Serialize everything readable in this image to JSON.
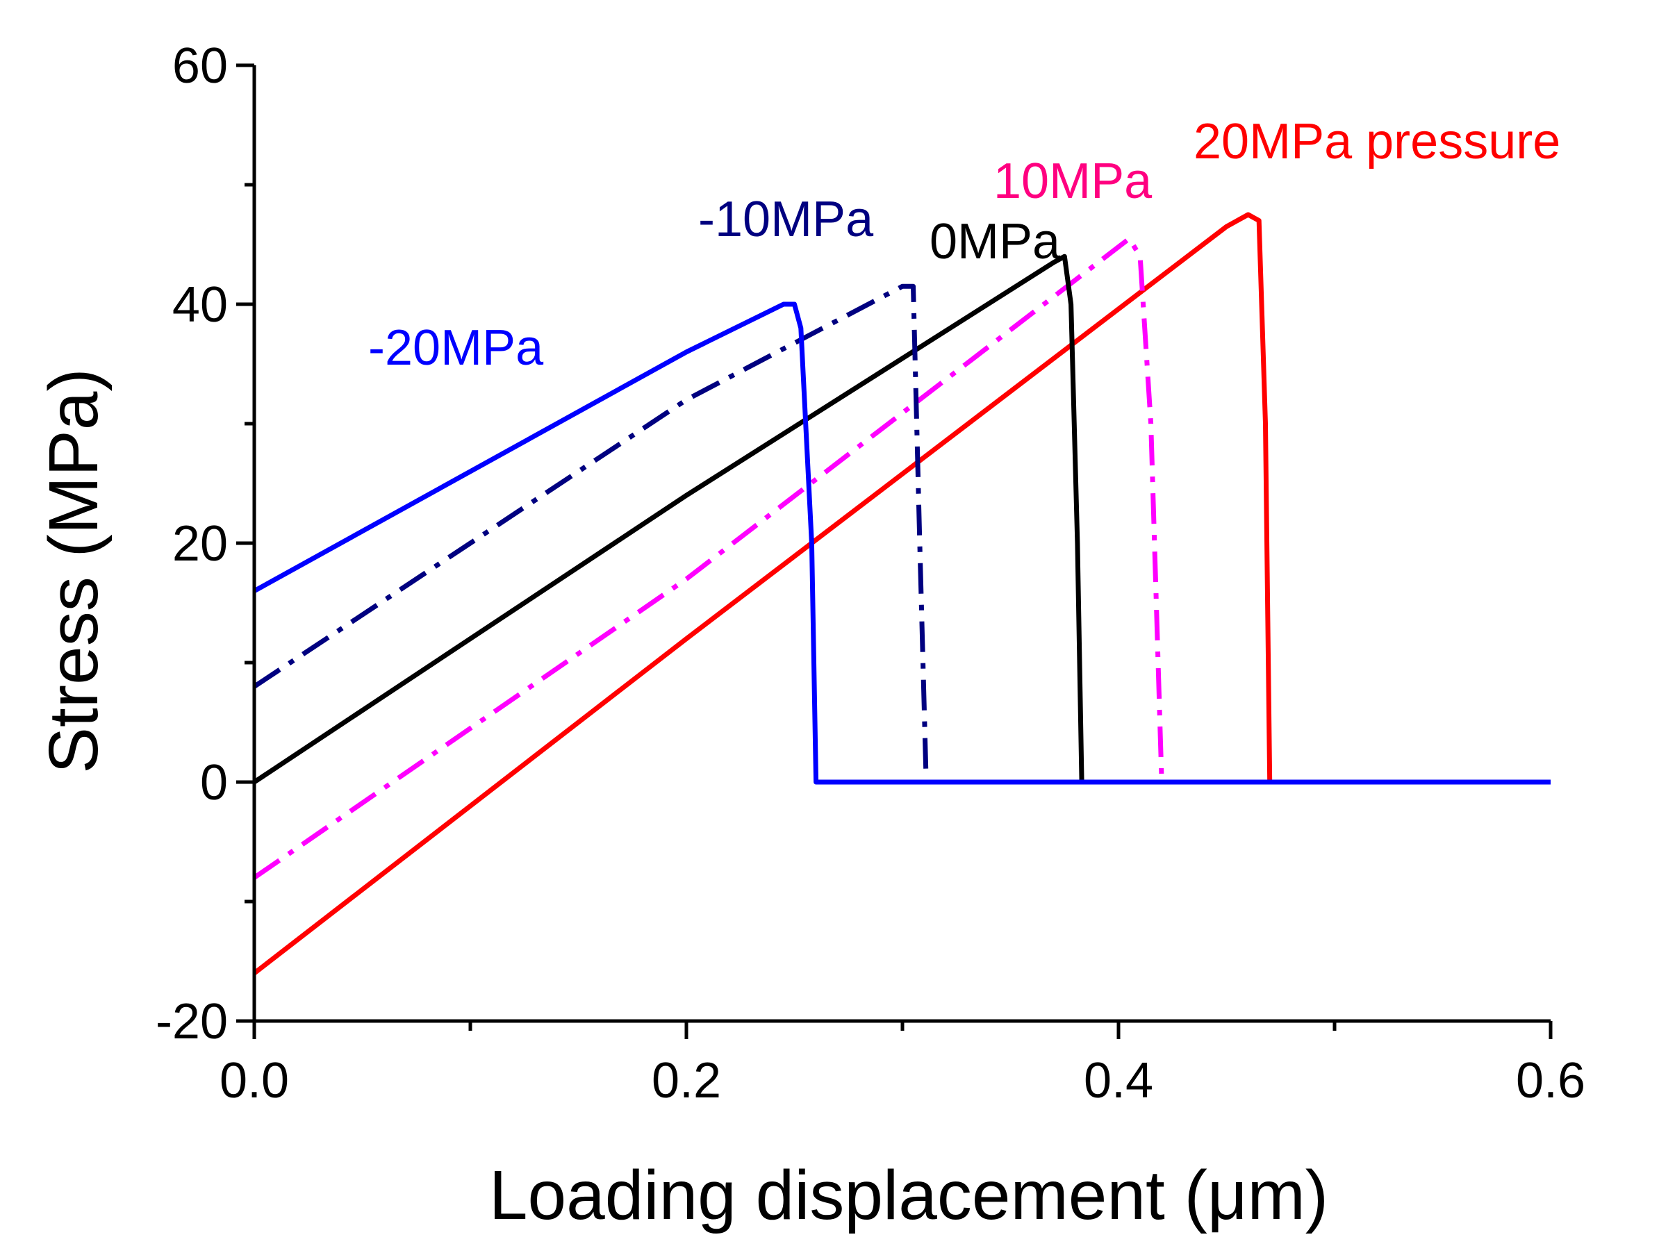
{
  "chart_data": {
    "type": "line",
    "title": "",
    "xlabel": "Loading displacement (μm)",
    "ylabel": "Stress (MPa)",
    "xlim": [
      0,
      0.6
    ],
    "ylim": [
      -20,
      60
    ],
    "x_ticks": [
      "0.0",
      "0.2",
      "0.4",
      "0.6"
    ],
    "y_ticks": [
      "-20",
      "0",
      "20",
      "40",
      "60"
    ],
    "x_tick_values": [
      0,
      0.2,
      0.4,
      0.6
    ],
    "y_tick_values": [
      -20,
      0,
      20,
      40,
      60
    ],
    "x_minor_tick_values": [
      0.1,
      0.3,
      0.5
    ],
    "y_minor_tick_values": [
      -10,
      10,
      30,
      50
    ],
    "grid": false,
    "legend": "none",
    "series": [
      {
        "id": "m20",
        "label": "-20MPa",
        "color": "#0000ff",
        "dash": "solid",
        "x": [
          0,
          0.2,
          0.245,
          0.25,
          0.253,
          0.258,
          0.26,
          0.6
        ],
        "y": [
          16,
          36,
          40,
          40,
          38,
          20,
          0,
          0
        ]
      },
      {
        "id": "m10",
        "label": "-10MPa",
        "color": "#000080",
        "dash": "dashdot",
        "x": [
          0,
          0.2,
          0.3,
          0.305,
          0.308,
          0.311,
          0.6
        ],
        "y": [
          8,
          32,
          41.5,
          41.5,
          20,
          0,
          0
        ]
      },
      {
        "id": "z0",
        "label": "0MPa",
        "color": "#000000",
        "dash": "solid",
        "x": [
          0,
          0.2,
          0.37,
          0.375,
          0.378,
          0.381,
          0.383,
          0.6
        ],
        "y": [
          0,
          24,
          43.5,
          44,
          40,
          20,
          0,
          0
        ]
      },
      {
        "id": "p10",
        "label": "10MPa",
        "color": "#ff00ff",
        "dash": "dashdot",
        "x": [
          0,
          0.2,
          0.405,
          0.41,
          0.415,
          0.42,
          0.6
        ],
        "y": [
          -8,
          17,
          45.5,
          44,
          30,
          0,
          0
        ]
      },
      {
        "id": "p20",
        "label": "20MPa pressure",
        "color": "#ff0000",
        "dash": "solid",
        "x": [
          0,
          0.2,
          0.45,
          0.46,
          0.465,
          0.468,
          0.47,
          0.6
        ],
        "y": [
          -16,
          12,
          46.5,
          47.5,
          47,
          30,
          0,
          0
        ]
      }
    ],
    "annotations": [
      {
        "text": "-20MPa",
        "color": "#0000ff"
      },
      {
        "text": "-10MPa",
        "color": "#000080"
      },
      {
        "text": "0MPa",
        "color": "#000000"
      },
      {
        "text": "10MPa",
        "color": "#ff0080"
      },
      {
        "text": "20MPa pressure",
        "color": "#ff0000"
      }
    ]
  }
}
